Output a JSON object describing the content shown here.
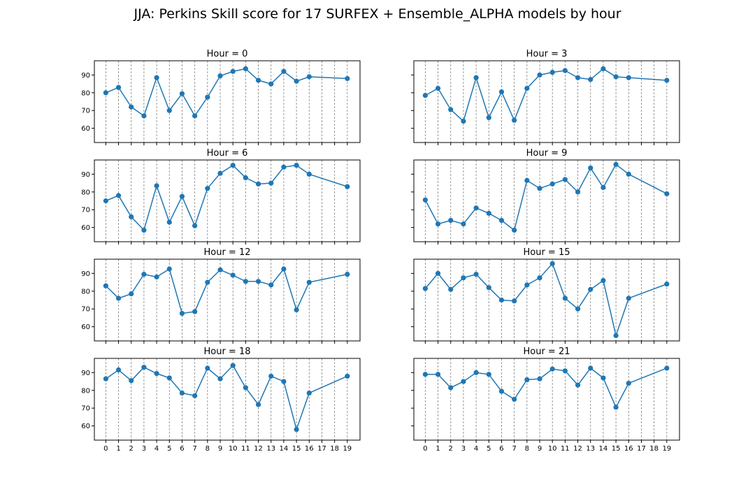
{
  "suptitle": "JJA: Perkins Skill score for 17 SURFEX + Ensemble_ALPHA models by hour",
  "colors": {
    "line": "#1f77b4",
    "grid": "#808080",
    "axes": "#000000"
  },
  "chart_data": {
    "type": "line",
    "ylim": [
      52,
      98
    ],
    "xlim": [
      -0.9,
      20
    ],
    "xticks": [
      0,
      1,
      2,
      3,
      4,
      5,
      6,
      7,
      8,
      9,
      10,
      11,
      12,
      13,
      14,
      15,
      16,
      17,
      18,
      19
    ],
    "yticks": [
      60,
      70,
      80,
      90
    ],
    "vgrid_dashed": true,
    "marker": "circle",
    "panels": [
      {
        "title": "Hour = 0",
        "x": [
          0,
          1,
          2,
          3,
          4,
          5,
          6,
          7,
          8,
          9,
          10,
          11,
          12,
          13,
          14,
          15,
          16,
          19
        ],
        "y": [
          80,
          83,
          72,
          67,
          88.5,
          70,
          79.5,
          67,
          77.5,
          89.5,
          92,
          93.5,
          87,
          85,
          92,
          86.5,
          89,
          88
        ]
      },
      {
        "title": "Hour = 3",
        "x": [
          0,
          1,
          2,
          3,
          4,
          5,
          6,
          7,
          8,
          9,
          10,
          11,
          12,
          13,
          14,
          15,
          16,
          19
        ],
        "y": [
          78.5,
          82.5,
          70.5,
          64,
          88.5,
          66,
          80.5,
          64.5,
          82.5,
          90,
          91.5,
          92.5,
          88.5,
          87.5,
          93.5,
          89,
          88.5,
          87
        ]
      },
      {
        "title": "Hour = 6",
        "x": [
          0,
          1,
          2,
          3,
          4,
          5,
          6,
          7,
          8,
          9,
          10,
          11,
          12,
          13,
          14,
          15,
          16,
          19
        ],
        "y": [
          75,
          78,
          66,
          58.5,
          83.5,
          63,
          77.5,
          61,
          82,
          90.5,
          95,
          88,
          84.5,
          85,
          94,
          95,
          90,
          83
        ]
      },
      {
        "title": "Hour = 9",
        "x": [
          0,
          1,
          2,
          3,
          4,
          5,
          6,
          7,
          8,
          9,
          10,
          11,
          12,
          13,
          14,
          15,
          16,
          19
        ],
        "y": [
          75.5,
          62,
          64,
          62,
          71,
          68,
          64,
          58.5,
          86.5,
          82,
          84.5,
          87,
          80,
          93.5,
          82.5,
          95.5,
          90,
          79
        ]
      },
      {
        "title": "Hour = 12",
        "x": [
          0,
          1,
          2,
          3,
          4,
          5,
          6,
          7,
          8,
          9,
          10,
          11,
          12,
          13,
          14,
          15,
          16,
          19
        ],
        "y": [
          83,
          76,
          78.5,
          89.5,
          88,
          92.5,
          67.5,
          68.5,
          85,
          92,
          89,
          85.5,
          85.5,
          83.5,
          92.5,
          69.5,
          85,
          89.5
        ]
      },
      {
        "title": "Hour = 15",
        "x": [
          0,
          1,
          2,
          3,
          4,
          5,
          6,
          7,
          8,
          9,
          10,
          11,
          12,
          13,
          14,
          15,
          16,
          19
        ],
        "y": [
          81.5,
          90,
          81,
          87.5,
          89.5,
          82,
          75,
          74.5,
          83.5,
          87.5,
          95.5,
          76,
          70,
          81,
          86,
          55,
          76,
          84
        ]
      },
      {
        "title": "Hour = 18",
        "x": [
          0,
          1,
          2,
          3,
          4,
          5,
          6,
          7,
          8,
          9,
          10,
          11,
          12,
          13,
          14,
          15,
          16,
          19
        ],
        "y": [
          86.5,
          91.5,
          85.5,
          93,
          89.5,
          87,
          78.5,
          77,
          92.5,
          86.5,
          94,
          81.5,
          72,
          88,
          85,
          58,
          78.5,
          88
        ]
      },
      {
        "title": "Hour = 21",
        "x": [
          0,
          1,
          2,
          3,
          4,
          5,
          6,
          7,
          8,
          9,
          10,
          11,
          12,
          13,
          14,
          15,
          16,
          19
        ],
        "y": [
          89,
          89,
          81.5,
          85,
          90,
          89,
          79.5,
          75,
          86,
          86.5,
          92,
          91,
          83,
          92.5,
          87,
          70.5,
          84,
          92.5
        ]
      }
    ]
  }
}
